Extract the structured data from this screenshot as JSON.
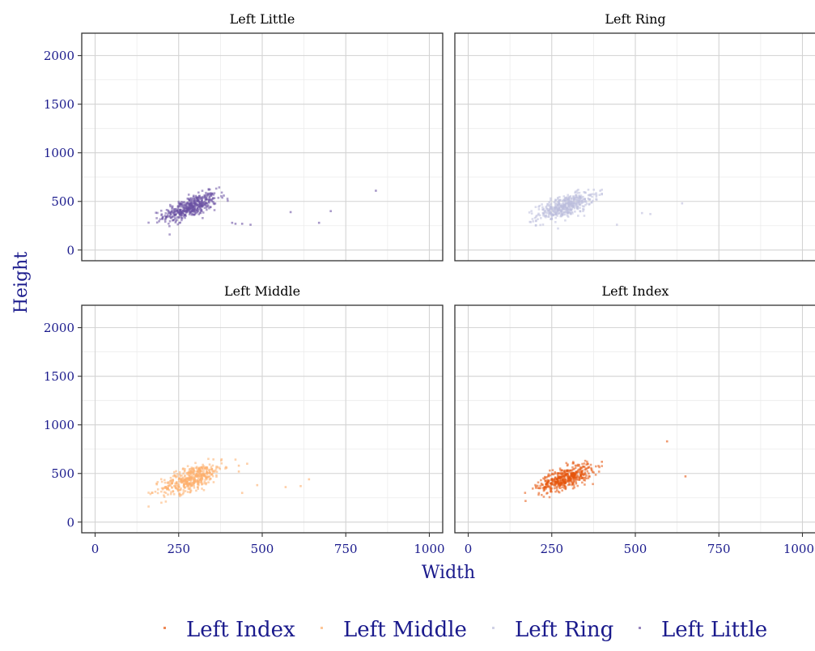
{
  "axis_labels": {
    "x": "Width",
    "y": "Height"
  },
  "colors": {
    "Left Index": "#e6550d",
    "Left Middle": "#fdae6b",
    "Left Ring": "#bcbddc",
    "Left Little": "#6a51a3",
    "axis_text": "#1a1a8c",
    "grid_major": "#d3d3d3",
    "grid_minor": "#ececec"
  },
  "legend": {
    "position": "bottom",
    "items": [
      "Left Index",
      "Left Middle",
      "Left Ring",
      "Left Little"
    ]
  },
  "chart_data": {
    "type": "scatter",
    "facets": [
      "Left Little",
      "Left Ring",
      "Left Middle",
      "Left Index"
    ],
    "xlabel": "Width",
    "ylabel": "Height",
    "xlim": [
      -40,
      1040
    ],
    "ylim": [
      -110,
      2230
    ],
    "x_ticks": [
      0,
      250,
      500,
      750,
      1000
    ],
    "y_ticks": [
      0,
      500,
      1000,
      1500,
      2000
    ],
    "grid": true,
    "series": [
      {
        "name": "Left Little",
        "cluster": {
          "x_mean": 285,
          "x_sd": 40,
          "y_mean": 440,
          "y_sd": 70,
          "count": 450,
          "x_range": [
            160,
            400
          ],
          "y_range": [
            160,
            680
          ]
        },
        "outliers": [
          [
            340,
            620
          ],
          [
            385,
            560
          ],
          [
            420,
            270
          ],
          [
            410,
            280
          ],
          [
            440,
            270
          ],
          [
            585,
            390
          ],
          [
            670,
            280
          ],
          [
            705,
            400
          ],
          [
            840,
            610
          ],
          [
            465,
            260
          ]
        ]
      },
      {
        "name": "Left Ring",
        "cluster": {
          "x_mean": 290,
          "x_sd": 42,
          "y_mean": 450,
          "y_sd": 70,
          "count": 450,
          "x_range": [
            160,
            400
          ],
          "y_range": [
            160,
            620
          ]
        },
        "outliers": [
          [
            395,
            610
          ],
          [
            445,
            260
          ],
          [
            520,
            380
          ],
          [
            545,
            370
          ],
          [
            640,
            480
          ]
        ]
      },
      {
        "name": "Left Middle",
        "cluster": {
          "x_mean": 290,
          "x_sd": 45,
          "y_mean": 450,
          "y_sd": 80,
          "count": 450,
          "x_range": [
            160,
            420
          ],
          "y_range": [
            160,
            650
          ]
        },
        "outliers": [
          [
            430,
            580
          ],
          [
            430,
            520
          ],
          [
            440,
            300
          ],
          [
            485,
            380
          ],
          [
            570,
            360
          ],
          [
            615,
            370
          ],
          [
            640,
            440
          ],
          [
            455,
            600
          ]
        ]
      },
      {
        "name": "Left Index",
        "cluster": {
          "x_mean": 290,
          "x_sd": 40,
          "y_mean": 450,
          "y_sd": 70,
          "count": 450,
          "x_range": [
            160,
            400
          ],
          "y_range": [
            160,
            630
          ]
        },
        "outliers": [
          [
            595,
            830
          ],
          [
            650,
            470
          ],
          [
            400,
            620
          ]
        ]
      }
    ]
  }
}
